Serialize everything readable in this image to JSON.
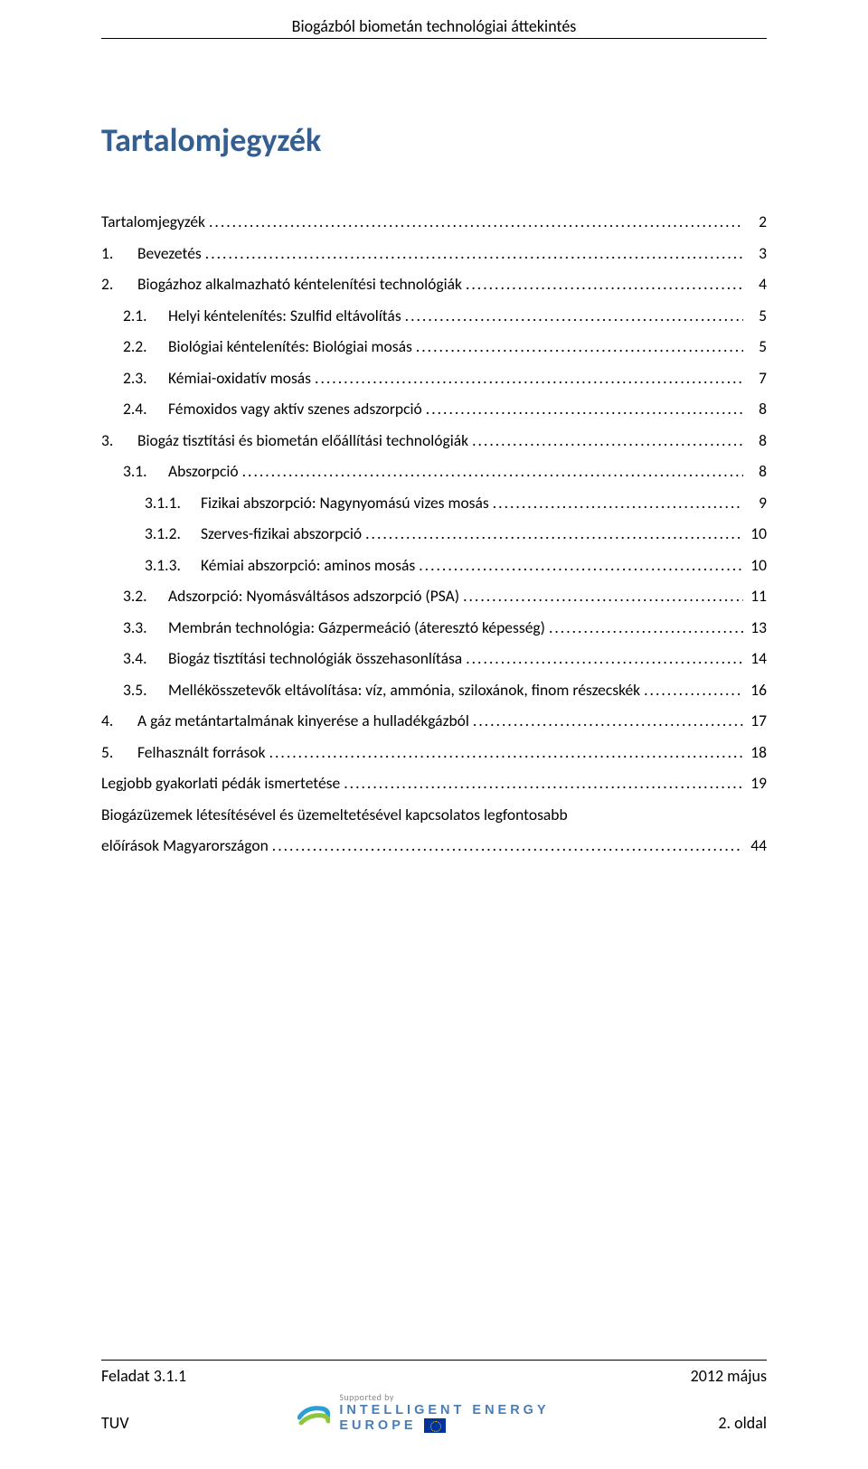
{
  "header": {
    "title": "Biogázból biometán technológiai áttekintés"
  },
  "toc": {
    "title": "Tartalomjegyzék",
    "entries": [
      {
        "num": "",
        "label": "Tartalomjegyzék",
        "page": "2",
        "indent": 0
      },
      {
        "num": "1.",
        "label": "Bevezetés",
        "page": "3",
        "indent": 0
      },
      {
        "num": "2.",
        "label": "Biogázhoz alkalmazható kéntelenítési technológiák",
        "page": "4",
        "indent": 0
      },
      {
        "num": "2.1.",
        "label": "Helyi kéntelenítés: Szulfid eltávolítás",
        "page": "5",
        "indent": 1
      },
      {
        "num": "2.2.",
        "label": "Biológiai kéntelenítés: Biológiai mosás",
        "page": "5",
        "indent": 1
      },
      {
        "num": "2.3.",
        "label": "Kémiai-oxidatív mosás",
        "page": "7",
        "indent": 1
      },
      {
        "num": "2.4.",
        "label": "Fémoxidos vagy aktív szenes adszorpció",
        "page": "8",
        "indent": 1
      },
      {
        "num": "3.",
        "label": "Biogáz tisztítási és biometán előállítási technológiák",
        "page": "8",
        "indent": 0
      },
      {
        "num": "3.1.",
        "label": "Abszorpció",
        "page": "8",
        "indent": 1
      },
      {
        "num": "3.1.1.",
        "label": "Fizikai abszorpció: Nagynyomású vizes mosás",
        "page": "9",
        "indent": 2
      },
      {
        "num": "3.1.2.",
        "label": "Szerves-fizikai abszorpció",
        "page": "10",
        "indent": 2
      },
      {
        "num": "3.1.3.",
        "label": "Kémiai abszorpció: aminos mosás",
        "page": "10",
        "indent": 2
      },
      {
        "num": "3.2.",
        "label": "Adszorpció: Nyomásváltásos adszorpció (PSA)",
        "page": "11",
        "indent": 1
      },
      {
        "num": "3.3.",
        "label": "Membrán technológia: Gázpermeáció (áteresztó képesség)",
        "page": "13",
        "indent": 1
      },
      {
        "num": "3.4.",
        "label": "Biogáz tisztítási technológiák összehasonlítása",
        "page": "14",
        "indent": 1
      },
      {
        "num": "3.5.",
        "label": "Mellékösszetevők eltávolítása: víz, ammónia, sziloxánok, finom részecskék",
        "page": "16",
        "indent": 1
      },
      {
        "num": "4.",
        "label": "A gáz metántartalmának kinyerése a hulladékgázból",
        "page": "17",
        "indent": 0
      },
      {
        "num": "5.",
        "label": "Felhasznált források",
        "page": "18",
        "indent": 0
      },
      {
        "num": "",
        "label": "Legjobb gyakorlati pédák ismertetése",
        "page": "19",
        "indent": 0
      },
      {
        "num": "",
        "label": "Biogázüzemek létesítésével és üzemeltetésével kapcsolatos legfontosabb",
        "page": "",
        "indent": 0,
        "noLeader": true
      },
      {
        "num": "",
        "label": "előírások Magyarországon",
        "page": "44",
        "indent": 0
      }
    ]
  },
  "footer": {
    "task": "Feladat 3.1.1",
    "date": "2012 május",
    "org": "TUV",
    "pageLabel": "2. oldal",
    "logo": {
      "supported": "Supported by",
      "line1": "INTELLIGENT ENERGY",
      "line2": "EUROPE"
    }
  },
  "colors": {
    "heading": "#365f91",
    "text": "#000000",
    "logoText": "#4a7db5",
    "logoSupported": "#888888",
    "euBlue": "#003399",
    "euGold": "#ffcc00",
    "swirlBlue": "#2a9fd6",
    "swirlGreen": "#8cc63f"
  }
}
